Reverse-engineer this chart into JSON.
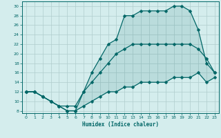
{
  "xlabel": "Humidex (Indice chaleur)",
  "background_color": "#d4eded",
  "line_color": "#006666",
  "grid_color": "#b0cccc",
  "xlim": [
    -0.5,
    23.5
  ],
  "ylim": [
    7.5,
    31
  ],
  "xticks": [
    0,
    1,
    2,
    3,
    4,
    5,
    6,
    7,
    8,
    9,
    10,
    11,
    12,
    13,
    14,
    15,
    16,
    17,
    18,
    19,
    20,
    21,
    22,
    23
  ],
  "yticks": [
    8,
    10,
    12,
    14,
    16,
    18,
    20,
    22,
    24,
    26,
    28,
    30
  ],
  "curve_bottom_x": [
    0,
    1,
    2,
    3,
    4,
    5,
    6,
    7,
    8,
    9,
    10,
    11,
    12,
    13,
    14,
    15,
    16,
    17,
    18,
    19,
    20,
    21,
    22,
    23
  ],
  "curve_bottom_y": [
    12,
    12,
    11,
    10,
    9,
    8,
    8,
    9,
    10,
    11,
    12,
    12,
    13,
    13,
    14,
    14,
    14,
    14,
    15,
    15,
    15,
    16,
    14,
    15
  ],
  "curve_mid_x": [
    0,
    1,
    2,
    3,
    4,
    5,
    6,
    7,
    8,
    9,
    10,
    11,
    12,
    13,
    14,
    15,
    16,
    17,
    18,
    19,
    20,
    21,
    22,
    23
  ],
  "curve_mid_y": [
    12,
    12,
    11,
    10,
    9,
    9,
    9,
    12,
    14,
    16,
    18,
    20,
    21,
    22,
    22,
    22,
    22,
    22,
    22,
    22,
    22,
    21,
    19,
    16
  ],
  "curve_top_x": [
    0,
    1,
    2,
    3,
    4,
    5,
    6,
    7,
    8,
    9,
    10,
    11,
    12,
    13,
    14,
    15,
    16,
    17,
    18,
    19,
    20,
    21,
    22,
    23
  ],
  "curve_top_y": [
    12,
    12,
    11,
    10,
    9,
    8,
    8,
    12,
    16,
    19,
    22,
    23,
    28,
    28,
    29,
    29,
    29,
    29,
    30,
    30,
    29,
    25,
    18,
    16
  ],
  "markersize": 2.5,
  "linewidth": 0.9
}
